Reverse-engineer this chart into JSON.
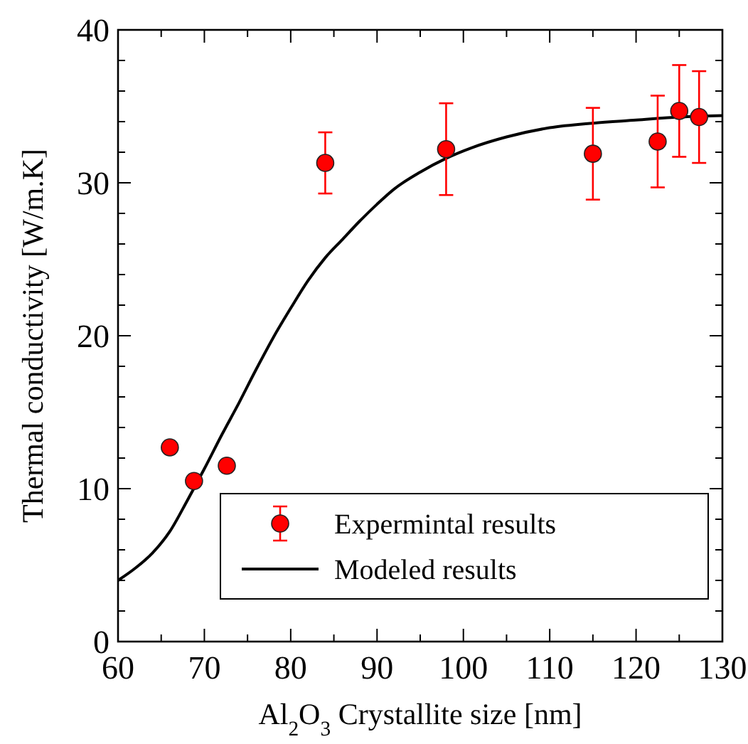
{
  "chart_data": {
    "type": "scatter",
    "xlabel": "Al$_{2}$O$_{3}$ Crystallite size [nm]",
    "ylabel": "Thermal conductivity [W/m.K]",
    "xlim": [
      60,
      130
    ],
    "xticks": [
      60,
      {
        "value": 65,
        "label": null
      },
      70,
      {
        "value": 75,
        "label": null
      },
      80,
      {
        "value": 85,
        "label": null
      },
      90,
      {
        "value": 95,
        "label": null
      },
      100,
      {
        "value": 105,
        "label": null
      },
      110,
      {
        "value": 115,
        "label": null
      },
      120,
      {
        "value": 125,
        "label": null
      },
      130
    ],
    "ylim": [
      0,
      40
    ],
    "yticks": [
      0,
      {
        "value": 2,
        "label": null
      },
      {
        "value": 4,
        "label": null
      },
      {
        "value": 6,
        "label": null
      },
      {
        "value": 8,
        "label": null
      },
      10,
      {
        "value": 12,
        "label": null
      },
      {
        "value": 14,
        "label": null
      },
      {
        "value": 16,
        "label": null
      },
      {
        "value": 18,
        "label": null
      },
      20,
      {
        "value": 22,
        "label": null
      },
      {
        "value": 24,
        "label": null
      },
      {
        "value": 26,
        "label": null
      },
      {
        "value": 28,
        "label": null
      },
      30,
      {
        "value": 32,
        "label": null
      },
      {
        "value": 34,
        "label": null
      },
      {
        "value": 36,
        "label": null
      },
      {
        "value": 38,
        "label": null
      },
      40
    ],
    "legend": "bottom right",
    "series": [
      {
        "name": "Expermintal results",
        "marker": "circle",
        "color": "#ff0000",
        "x": [
          66,
          68.8,
          72.6,
          84,
          98,
          115,
          122.5,
          125,
          127.3
        ],
        "values": [
          12.7,
          10.5,
          11.5,
          31.3,
          32.2,
          31.9,
          32.7,
          34.7,
          34.3
        ],
        "errors": [
          null,
          null,
          null,
          2,
          3,
          3,
          3,
          3,
          3
        ]
      },
      {
        "name": "Modeled results",
        "type": "line",
        "marker": "none",
        "color": "#000000",
        "x": [
          60,
          62,
          64,
          66,
          68,
          70,
          72,
          74,
          76,
          78,
          80,
          82,
          84,
          86,
          88,
          90,
          92,
          95,
          98,
          101,
          105,
          110,
          115,
          120,
          125,
          130
        ],
        "values": [
          4.0,
          4.8,
          5.8,
          7.2,
          9.2,
          11.3,
          13.5,
          15.6,
          17.8,
          19.9,
          21.8,
          23.6,
          25.1,
          26.3,
          27.5,
          28.6,
          29.6,
          30.7,
          31.6,
          32.3,
          33.0,
          33.6,
          33.9,
          34.1,
          34.3,
          34.4
        ]
      }
    ]
  }
}
